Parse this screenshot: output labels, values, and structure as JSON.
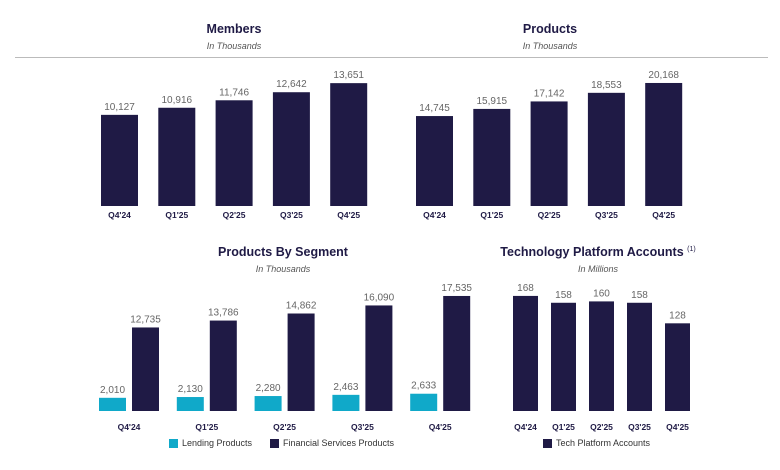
{
  "colors": {
    "primary": "#1f1a45",
    "lending": "#10a9c9",
    "value_label": "#666666",
    "tick_label": "#1f1a45"
  },
  "chart_data": [
    {
      "id": "members",
      "type": "bar",
      "title": "Members",
      "subtitle": "In Thousands",
      "categories": [
        "Q4'24",
        "Q1'25",
        "Q2'25",
        "Q3'25",
        "Q4'25"
      ],
      "series": [
        {
          "values": [
            10127,
            10916,
            11746,
            12642,
            13651
          ],
          "labels": [
            "10,127",
            "10,916",
            "11,746",
            "12,642",
            "13,651"
          ]
        }
      ]
    },
    {
      "id": "products",
      "type": "bar",
      "title": "Products",
      "subtitle": "In Thousands",
      "categories": [
        "Q4'24",
        "Q1'25",
        "Q2'25",
        "Q3'25",
        "Q4'25"
      ],
      "series": [
        {
          "values": [
            14745,
            15915,
            17142,
            18553,
            20168
          ],
          "labels": [
            "14,745",
            "15,915",
            "17,142",
            "18,553",
            "20,168"
          ]
        }
      ]
    },
    {
      "id": "segment",
      "type": "bar",
      "title": "Products By Segment",
      "subtitle": "In Thousands",
      "categories": [
        "Q4'24",
        "Q1'25",
        "Q2'25",
        "Q3'25",
        "Q4'25"
      ],
      "legend": "bottom",
      "series": [
        {
          "name": "Lending Products",
          "values": [
            2010,
            2130,
            2280,
            2463,
            2633
          ],
          "labels": [
            "2,010",
            "2,130",
            "2,280",
            "2,463",
            "2,633"
          ]
        },
        {
          "name": "Financial Services Products",
          "values": [
            12735,
            13786,
            14862,
            16090,
            17535
          ],
          "labels": [
            "12,735",
            "13,786",
            "14,862",
            "16,090",
            "17,535"
          ]
        }
      ]
    },
    {
      "id": "tech",
      "type": "bar",
      "title": "Technology Platform Accounts",
      "title_note": "(1)",
      "subtitle": "In Millions",
      "categories": [
        "Q4'24",
        "Q1'25",
        "Q2'25",
        "Q3'25",
        "Q4'25"
      ],
      "legend": "bottom",
      "series": [
        {
          "name": "Tech Platform Accounts",
          "values": [
            168,
            158,
            160,
            158,
            128
          ],
          "labels": [
            "168",
            "158",
            "160",
            "158",
            "128"
          ]
        }
      ]
    }
  ]
}
